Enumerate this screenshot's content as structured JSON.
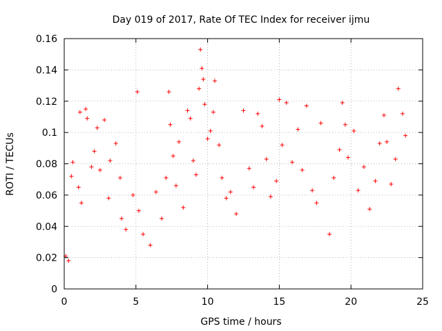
{
  "chart_data": {
    "type": "scatter",
    "title": "Day 019 of 2017, Rate Of TEC Index for receiver ijmu",
    "xlabel": "GPS time / hours",
    "ylabel": "ROTI / TECUs",
    "xlim": [
      0,
      25
    ],
    "ylim": [
      0,
      0.16
    ],
    "xticks": [
      0,
      5,
      10,
      15,
      20,
      25
    ],
    "xtick_labels": [
      "0",
      "5",
      "10",
      "15",
      "20",
      "25"
    ],
    "yticks": [
      0,
      0.02,
      0.04,
      0.06,
      0.08,
      0.1,
      0.12,
      0.14,
      0.16
    ],
    "ytick_labels": [
      "0",
      "0.02",
      "0.04",
      "0.06",
      "0.08",
      "0.1",
      "0.12",
      "0.14",
      "0.16"
    ],
    "grid": true,
    "marker": "+",
    "series": [
      {
        "name": "ROTI",
        "color": "#ff0000",
        "x": [
          0.1,
          0.3,
          0.5,
          0.6,
          1.0,
          1.1,
          1.2,
          1.5,
          1.6,
          1.9,
          2.1,
          2.3,
          2.5,
          2.8,
          3.1,
          3.2,
          3.6,
          3.9,
          4.0,
          4.3,
          4.8,
          5.1,
          5.2,
          5.5,
          6.0,
          6.4,
          6.8,
          7.1,
          7.3,
          7.4,
          7.6,
          7.8,
          8.0,
          8.3,
          8.6,
          8.8,
          9.0,
          9.2,
          9.4,
          9.5,
          9.6,
          9.7,
          9.8,
          10.0,
          10.2,
          10.4,
          10.5,
          10.8,
          11.0,
          11.3,
          11.6,
          12.0,
          12.5,
          12.9,
          13.2,
          13.5,
          13.8,
          14.1,
          14.4,
          14.8,
          15.0,
          15.2,
          15.5,
          15.9,
          16.3,
          16.6,
          16.9,
          17.3,
          17.6,
          17.9,
          18.5,
          18.8,
          19.2,
          19.4,
          19.6,
          19.8,
          20.2,
          20.5,
          20.9,
          21.3,
          21.7,
          22.0,
          22.3,
          22.5,
          22.8,
          23.1,
          23.3,
          23.6,
          23.8
        ],
        "y": [
          0.021,
          0.018,
          0.072,
          0.081,
          0.065,
          0.113,
          0.055,
          0.115,
          0.109,
          0.078,
          0.088,
          0.103,
          0.076,
          0.108,
          0.058,
          0.082,
          0.093,
          0.071,
          0.045,
          0.038,
          0.06,
          0.126,
          0.05,
          0.035,
          0.028,
          0.062,
          0.045,
          0.071,
          0.126,
          0.105,
          0.085,
          0.066,
          0.094,
          0.052,
          0.114,
          0.109,
          0.082,
          0.073,
          0.128,
          0.153,
          0.141,
          0.134,
          0.118,
          0.096,
          0.101,
          0.113,
          0.133,
          0.092,
          0.071,
          0.058,
          0.062,
          0.048,
          0.114,
          0.077,
          0.065,
          0.112,
          0.104,
          0.083,
          0.059,
          0.069,
          0.121,
          0.092,
          0.119,
          0.081,
          0.102,
          0.076,
          0.117,
          0.063,
          0.055,
          0.106,
          0.035,
          0.071,
          0.089,
          0.119,
          0.105,
          0.084,
          0.101,
          0.063,
          0.078,
          0.051,
          0.069,
          0.093,
          0.111,
          0.094,
          0.067,
          0.083,
          0.128,
          0.112,
          0.098
        ]
      }
    ]
  }
}
